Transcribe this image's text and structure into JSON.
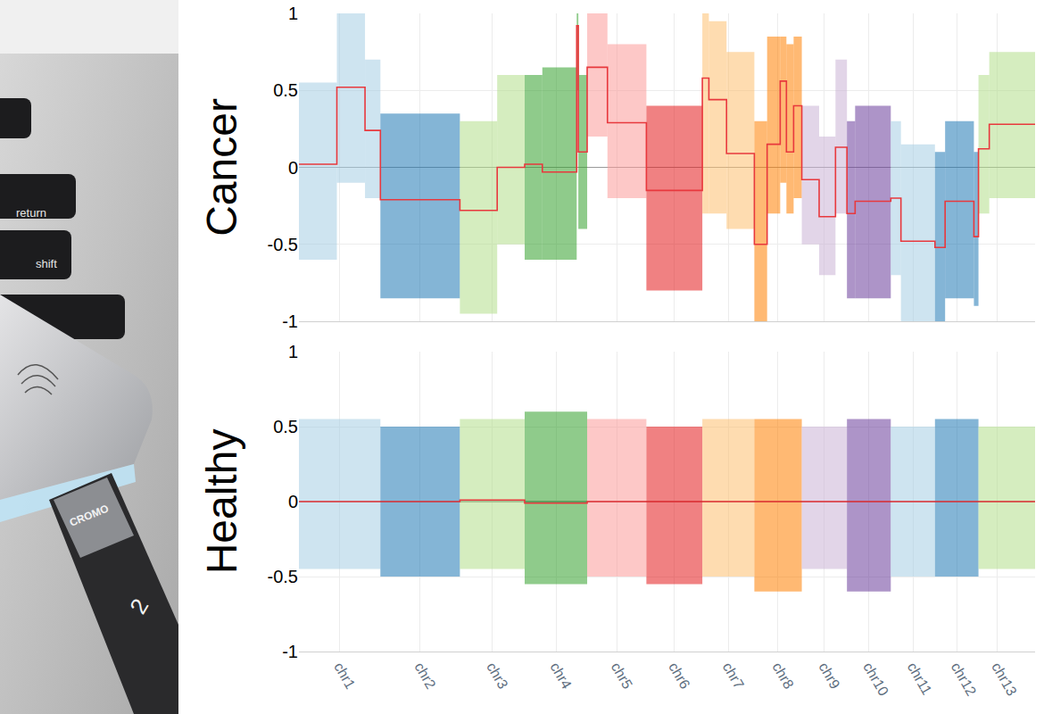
{
  "chart_data": [
    {
      "type": "line",
      "ylabel": "Cancer",
      "xlim": [
        0,
        2250
      ],
      "ylim": [
        -1,
        1
      ],
      "yticks": [
        -1,
        -0.5,
        0,
        0.5,
        1
      ],
      "grid": true,
      "tick_labels": "y",
      "color": "#e8383d",
      "xticks": [
        {
          "value": 124.5,
          "label": "chr1"
        },
        {
          "value": 370.5,
          "label": "chr2"
        },
        {
          "value": 591,
          "label": "chr3"
        },
        {
          "value": 785.5,
          "label": "chr4"
        },
        {
          "value": 971.5,
          "label": "chr5"
        },
        {
          "value": 1147.5,
          "label": "chr6"
        },
        {
          "value": 1312.5,
          "label": "chr7"
        },
        {
          "value": 1464.5,
          "label": "chr8"
        },
        {
          "value": 1606,
          "label": "chr9"
        },
        {
          "value": 1742,
          "label": "chr10"
        },
        {
          "value": 1876.5,
          "label": "chr11"
        },
        {
          "value": 2010.5,
          "label": "chr12"
        },
        {
          "value": 2134.5,
          "label": "chr13"
        }
      ],
      "chromosomes": [
        {
          "name": "chr1",
          "start": 0,
          "end": 249,
          "color": "#a6cee3"
        },
        {
          "name": "chr2",
          "start": 249,
          "end": 492,
          "color": "#1f78b4"
        },
        {
          "name": "chr3",
          "start": 492,
          "end": 690,
          "color": "#b2df8a"
        },
        {
          "name": "chr4",
          "start": 690,
          "end": 881,
          "color": "#33a02c"
        },
        {
          "name": "chr5",
          "start": 881,
          "end": 1062,
          "color": "#fb9a99"
        },
        {
          "name": "chr6",
          "start": 1062,
          "end": 1233,
          "color": "#e31a1c"
        },
        {
          "name": "chr7",
          "start": 1233,
          "end": 1392,
          "color": "#fdbf6f"
        },
        {
          "name": "chr8",
          "start": 1392,
          "end": 1537,
          "color": "#ff7f00"
        },
        {
          "name": "chr9",
          "start": 1537,
          "end": 1675,
          "color": "#cab2d6"
        },
        {
          "name": "chr10",
          "start": 1675,
          "end": 1809,
          "color": "#6a3d9a"
        },
        {
          "name": "chr11",
          "start": 1809,
          "end": 1944,
          "color": "#a6cee3"
        },
        {
          "name": "chr12",
          "start": 1944,
          "end": 2077,
          "color": "#1f78b4"
        },
        {
          "name": "chr13",
          "start": 2077,
          "end": 2192,
          "color": "#b2df8a"
        }
      ],
      "segments": [
        {
          "chr": "chr1",
          "start": 0,
          "end": 116,
          "value": 0.02,
          "low": -0.6,
          "high": 0.55
        },
        {
          "chr": "chr1",
          "start": 116,
          "end": 202,
          "value": 0.52,
          "low": -0.1,
          "high": 1.0
        },
        {
          "chr": "chr1",
          "start": 202,
          "end": 249,
          "value": 0.24,
          "low": -0.2,
          "high": 0.7
        },
        {
          "chr": "chr2",
          "start": 249,
          "end": 492,
          "value": -0.21,
          "low": -0.85,
          "high": 0.35
        },
        {
          "chr": "chr3",
          "start": 492,
          "end": 606,
          "value": -0.28,
          "low": -0.95,
          "high": 0.3
        },
        {
          "chr": "chr3",
          "start": 606,
          "end": 690,
          "value": 0.0,
          "low": -0.5,
          "high": 0.6
        },
        {
          "chr": "chr4",
          "start": 690,
          "end": 744,
          "value": 0.02,
          "low": -0.6,
          "high": 0.6
        },
        {
          "chr": "chr4",
          "start": 744,
          "end": 849,
          "value": -0.03,
          "low": -0.6,
          "high": 0.65
        },
        {
          "chr": "chr4",
          "start": 849,
          "end": 854,
          "value": 0.92,
          "low": 0.5,
          "high": 1.0
        },
        {
          "chr": "chr4",
          "start": 854,
          "end": 881,
          "value": 0.1,
          "low": -0.4,
          "high": 0.6
        },
        {
          "chr": "chr5",
          "start": 881,
          "end": 943,
          "value": 0.65,
          "low": 0.2,
          "high": 1.0
        },
        {
          "chr": "chr5",
          "start": 943,
          "end": 1062,
          "value": 0.29,
          "low": -0.2,
          "high": 0.8
        },
        {
          "chr": "chr6",
          "start": 1062,
          "end": 1233,
          "value": -0.15,
          "low": -0.8,
          "high": 0.4
        },
        {
          "chr": "chr7",
          "start": 1233,
          "end": 1253,
          "value": 0.58,
          "low": -0.3,
          "high": 1.0
        },
        {
          "chr": "chr7",
          "start": 1253,
          "end": 1307,
          "value": 0.44,
          "low": -0.3,
          "high": 0.95
        },
        {
          "chr": "chr7",
          "start": 1307,
          "end": 1392,
          "value": 0.09,
          "low": -0.4,
          "high": 0.75
        },
        {
          "chr": "chr8",
          "start": 1392,
          "end": 1431,
          "value": -0.5,
          "low": -1.0,
          "high": 0.3
        },
        {
          "chr": "chr8",
          "start": 1431,
          "end": 1471,
          "value": 0.15,
          "low": -0.3,
          "high": 0.85
        },
        {
          "chr": "chr8",
          "start": 1471,
          "end": 1490,
          "value": 0.56,
          "low": -0.1,
          "high": 0.85
        },
        {
          "chr": "chr8",
          "start": 1490,
          "end": 1512,
          "value": 0.1,
          "low": -0.3,
          "high": 0.8
        },
        {
          "chr": "chr8",
          "start": 1512,
          "end": 1537,
          "value": 0.4,
          "low": -0.2,
          "high": 0.85
        },
        {
          "chr": "chr9",
          "start": 1537,
          "end": 1590,
          "value": -0.08,
          "low": -0.5,
          "high": 0.4
        },
        {
          "chr": "chr9",
          "start": 1590,
          "end": 1640,
          "value": -0.32,
          "low": -0.7,
          "high": 0.2
        },
        {
          "chr": "chr9",
          "start": 1640,
          "end": 1675,
          "value": 0.13,
          "low": -0.3,
          "high": 0.7
        },
        {
          "chr": "chr10",
          "start": 1675,
          "end": 1700,
          "value": -0.3,
          "low": -0.85,
          "high": 0.3
        },
        {
          "chr": "chr10",
          "start": 1700,
          "end": 1809,
          "value": -0.22,
          "low": -0.85,
          "high": 0.4
        },
        {
          "chr": "chr11",
          "start": 1809,
          "end": 1840,
          "value": -0.2,
          "low": -0.7,
          "high": 0.3
        },
        {
          "chr": "chr11",
          "start": 1840,
          "end": 1944,
          "value": -0.48,
          "low": -1.0,
          "high": 0.15
        },
        {
          "chr": "chr12",
          "start": 1944,
          "end": 1975,
          "value": -0.52,
          "low": -1.0,
          "high": 0.1
        },
        {
          "chr": "chr12",
          "start": 1975,
          "end": 2063,
          "value": -0.22,
          "low": -0.85,
          "high": 0.3
        },
        {
          "chr": "chr12",
          "start": 2063,
          "end": 2077,
          "value": -0.45,
          "low": -0.9,
          "high": 0.1
        },
        {
          "chr": "chr13",
          "start": 2077,
          "end": 2110,
          "value": 0.12,
          "low": -0.3,
          "high": 0.6
        },
        {
          "chr": "chr13",
          "start": 2110,
          "end": 2250,
          "value": 0.28,
          "low": -0.2,
          "high": 0.75
        }
      ]
    },
    {
      "type": "line",
      "ylabel": "Healthy",
      "xlim": [
        0,
        2250
      ],
      "ylim": [
        -1,
        1
      ],
      "yticks": [
        -1,
        -0.5,
        0,
        0.5,
        1
      ],
      "grid": true,
      "tick_labels": true,
      "color": "#e8383d",
      "xticks": [
        {
          "value": 124.5,
          "label": "chr1"
        },
        {
          "value": 370.5,
          "label": "chr2"
        },
        {
          "value": 591,
          "label": "chr3"
        },
        {
          "value": 785.5,
          "label": "chr4"
        },
        {
          "value": 971.5,
          "label": "chr5"
        },
        {
          "value": 1147.5,
          "label": "chr6"
        },
        {
          "value": 1312.5,
          "label": "chr7"
        },
        {
          "value": 1464.5,
          "label": "chr8"
        },
        {
          "value": 1606,
          "label": "chr9"
        },
        {
          "value": 1742,
          "label": "chr10"
        },
        {
          "value": 1876.5,
          "label": "chr11"
        },
        {
          "value": 2010.5,
          "label": "chr12"
        },
        {
          "value": 2134.5,
          "label": "chr13"
        }
      ],
      "chromosomes": [
        {
          "name": "chr1",
          "start": 0,
          "end": 249,
          "color": "#a6cee3"
        },
        {
          "name": "chr2",
          "start": 249,
          "end": 492,
          "color": "#1f78b4"
        },
        {
          "name": "chr3",
          "start": 492,
          "end": 690,
          "color": "#b2df8a"
        },
        {
          "name": "chr4",
          "start": 690,
          "end": 881,
          "color": "#33a02c"
        },
        {
          "name": "chr5",
          "start": 881,
          "end": 1062,
          "color": "#fb9a99"
        },
        {
          "name": "chr6",
          "start": 1062,
          "end": 1233,
          "color": "#e31a1c"
        },
        {
          "name": "chr7",
          "start": 1233,
          "end": 1392,
          "color": "#fdbf6f"
        },
        {
          "name": "chr8",
          "start": 1392,
          "end": 1537,
          "color": "#ff7f00"
        },
        {
          "name": "chr9",
          "start": 1537,
          "end": 1675,
          "color": "#cab2d6"
        },
        {
          "name": "chr10",
          "start": 1675,
          "end": 1809,
          "color": "#6a3d9a"
        },
        {
          "name": "chr11",
          "start": 1809,
          "end": 1944,
          "color": "#a6cee3"
        },
        {
          "name": "chr12",
          "start": 1944,
          "end": 2077,
          "color": "#1f78b4"
        },
        {
          "name": "chr13",
          "start": 2077,
          "end": 2192,
          "color": "#b2df8a"
        }
      ],
      "segments": [
        {
          "chr": "chr1",
          "start": 0,
          "end": 249,
          "value": 0.0,
          "low": -0.45,
          "high": 0.55
        },
        {
          "chr": "chr2",
          "start": 249,
          "end": 492,
          "value": 0.0,
          "low": -0.5,
          "high": 0.5
        },
        {
          "chr": "chr3",
          "start": 492,
          "end": 690,
          "value": 0.01,
          "low": -0.45,
          "high": 0.55
        },
        {
          "chr": "chr4",
          "start": 690,
          "end": 881,
          "value": -0.01,
          "low": -0.55,
          "high": 0.6
        },
        {
          "chr": "chr5",
          "start": 881,
          "end": 1062,
          "value": 0.0,
          "low": -0.5,
          "high": 0.55
        },
        {
          "chr": "chr6",
          "start": 1062,
          "end": 1233,
          "value": 0.0,
          "low": -0.55,
          "high": 0.5
        },
        {
          "chr": "chr7",
          "start": 1233,
          "end": 1392,
          "value": 0.0,
          "low": -0.5,
          "high": 0.55
        },
        {
          "chr": "chr8",
          "start": 1392,
          "end": 1537,
          "value": 0.0,
          "low": -0.6,
          "high": 0.55
        },
        {
          "chr": "chr9",
          "start": 1537,
          "end": 1675,
          "value": 0.0,
          "low": -0.45,
          "high": 0.5
        },
        {
          "chr": "chr10",
          "start": 1675,
          "end": 1809,
          "value": 0.0,
          "low": -0.6,
          "high": 0.55
        },
        {
          "chr": "chr11",
          "start": 1809,
          "end": 1944,
          "value": 0.0,
          "low": -0.5,
          "high": 0.5
        },
        {
          "chr": "chr12",
          "start": 1944,
          "end": 2077,
          "value": 0.0,
          "low": -0.5,
          "high": 0.55
        },
        {
          "chr": "chr13",
          "start": 2077,
          "end": 2250,
          "value": 0.0,
          "low": -0.45,
          "high": 0.5
        }
      ]
    }
  ],
  "photo": {
    "keys": [
      "return",
      "shift"
    ],
    "device_label": "CROMO",
    "cable_mark": "2"
  }
}
